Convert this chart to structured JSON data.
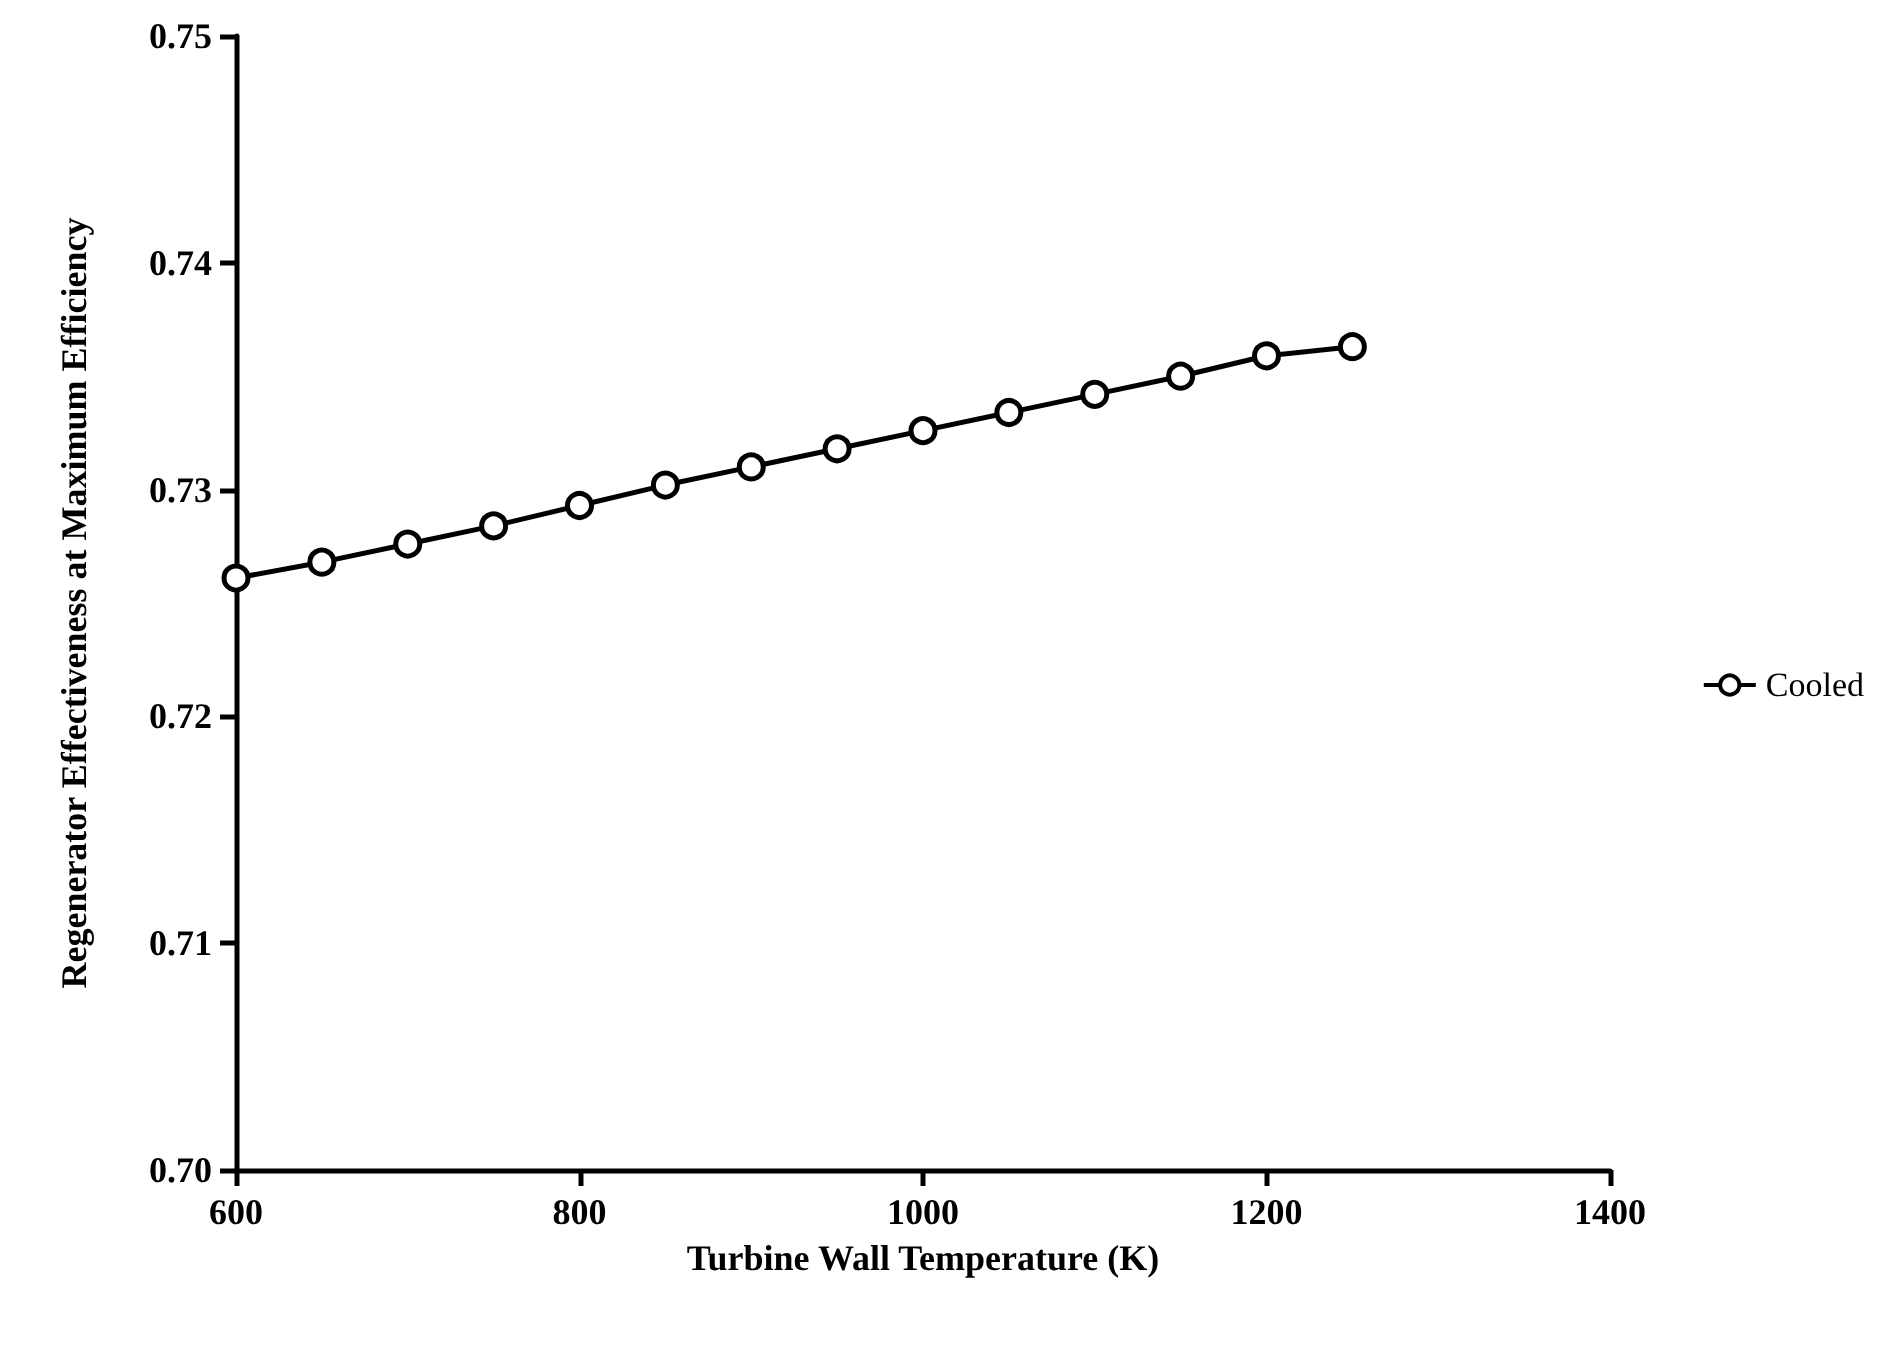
{
  "chart_data": {
    "type": "line",
    "xlabel": "Turbine Wall Temperature (K)",
    "ylabel": "Regenerator Effectiveness at Maximum Efficiency",
    "x": [
      600,
      650,
      700,
      750,
      800,
      850,
      900,
      950,
      1000,
      1050,
      1100,
      1150,
      1200,
      1250
    ],
    "series": [
      {
        "name": "Cooled",
        "color": "#000000",
        "values": [
          0.7261,
          0.7268,
          0.7276,
          0.7284,
          0.7293,
          0.7302,
          0.731,
          0.7318,
          0.7326,
          0.7334,
          0.7342,
          0.735,
          0.7359,
          0.7363
        ]
      }
    ],
    "xlim": [
      600,
      1400
    ],
    "xticks": [
      600,
      800,
      1000,
      1200,
      1400
    ],
    "ylim": [
      0.7,
      0.75
    ],
    "yticks": [
      {
        "value": 0.7,
        "label": "0.70"
      },
      {
        "value": 0.71,
        "label": "0.71"
      },
      {
        "value": 0.72,
        "label": "0.72"
      },
      {
        "value": 0.73,
        "label": "0.73"
      },
      {
        "value": 0.74,
        "label": "0.74"
      },
      {
        "value": 0.75,
        "label": "0.75"
      }
    ],
    "marker": "circle",
    "legend": "right",
    "grid": false
  }
}
